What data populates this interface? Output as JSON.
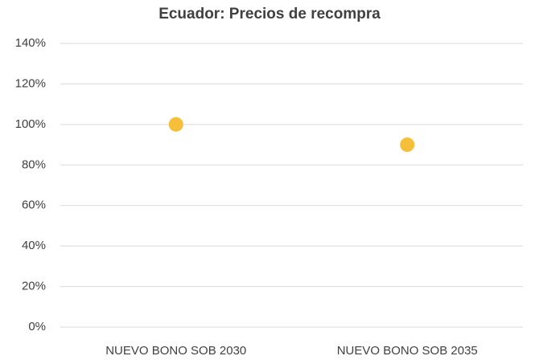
{
  "chart_data": {
    "type": "scatter",
    "title": "Ecuador: Precios de recompra",
    "categories": [
      "NUEVO BONO SOB 2030",
      "NUEVO BONO SOB 2035"
    ],
    "values": [
      100,
      90
    ],
    "color": "#f5bf3a",
    "ylim": [
      0,
      140
    ],
    "yticks": [
      {
        "value": 0,
        "label": "0%"
      },
      {
        "value": 20,
        "label": "20%"
      },
      {
        "value": 40,
        "label": "40%"
      },
      {
        "value": 60,
        "label": "60%"
      },
      {
        "value": 80,
        "label": "80%"
      },
      {
        "value": 100,
        "label": "100%"
      },
      {
        "value": 120,
        "label": "120%"
      },
      {
        "value": 140,
        "label": "140%"
      }
    ],
    "grid": true
  }
}
